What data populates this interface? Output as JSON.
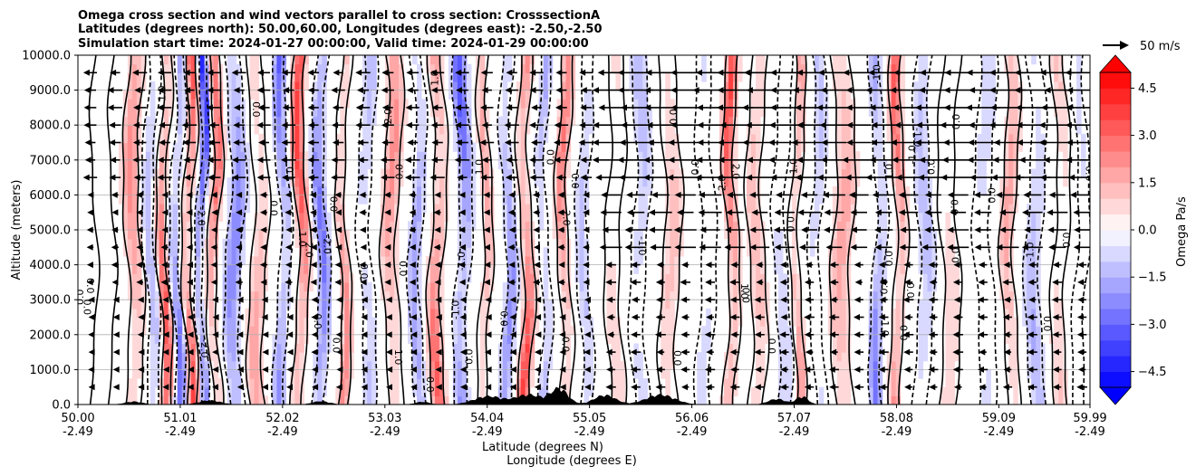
{
  "chart_data": {
    "type": "heatmap",
    "title_lines": [
      "Omega cross section and wind vectors parallel to cross section: CrosssectionA",
      "Latitudes (degrees north): 50.00,60.00, Longitudes (degrees east): -2.50,-2.50",
      "Simulation start time: 2024-01-27 00:00:00, Valid time: 2024-01-29 00:00:00"
    ],
    "xlabel_lat": "Latitude (degrees N)",
    "xlabel_lon": "Longitude (degrees E)",
    "ylabel": "Altitude (meters)",
    "xlim": [
      50.0,
      59.99
    ],
    "ylim": [
      0.0,
      10000.0
    ],
    "x_ticks": [
      {
        "lat": "50.00",
        "lon": "-2.49"
      },
      {
        "lat": "51.01",
        "lon": "-2.49"
      },
      {
        "lat": "52.02",
        "lon": "-2.49"
      },
      {
        "lat": "53.03",
        "lon": "-2.49"
      },
      {
        "lat": "54.04",
        "lon": "-2.49"
      },
      {
        "lat": "55.05",
        "lon": "-2.49"
      },
      {
        "lat": "56.06",
        "lon": "-2.49"
      },
      {
        "lat": "57.07",
        "lon": "-2.49"
      },
      {
        "lat": "58.08",
        "lon": "-2.49"
      },
      {
        "lat": "59.09",
        "lon": "-2.49"
      },
      {
        "lat": "59.99",
        "lon": "-2.49"
      }
    ],
    "y_ticks": [
      "0.0",
      "1000.0",
      "2000.0",
      "3000.0",
      "4000.0",
      "5000.0",
      "6000.0",
      "7000.0",
      "8000.0",
      "9000.0",
      "10000.0"
    ],
    "y_tick_values": [
      0,
      1000,
      2000,
      3000,
      4000,
      5000,
      6000,
      7000,
      8000,
      9000,
      10000
    ],
    "grid": "horizontal",
    "colorbar": {
      "label": "Omega Pa/s",
      "tick_labels": [
        "4.5",
        "3.0",
        "1.5",
        "0.0",
        "−1.5",
        "−3.0",
        "−4.5"
      ],
      "tick_values": [
        4.5,
        3.0,
        1.5,
        0.0,
        -1.5,
        -3.0,
        -4.5
      ],
      "range": [
        -5.0,
        5.0
      ],
      "extend": "both",
      "colormap": "bwr"
    },
    "quiver_key": {
      "label": "50 m/s",
      "speed": 50
    },
    "contour_label_values": [
      "0.0",
      "1.0",
      "2.0",
      "-1.0",
      "-2.0"
    ],
    "wind_field": "mostly southward (toward lower latitude) above ~6000 m north of 55 N; weak near surface",
    "terrain": "black orography near surface, highest around 54-56 N"
  },
  "colors": {
    "positive": "#ff0000",
    "negative": "#0000ff",
    "neutral": "#ffffff",
    "grid": "#b0b0b0"
  }
}
